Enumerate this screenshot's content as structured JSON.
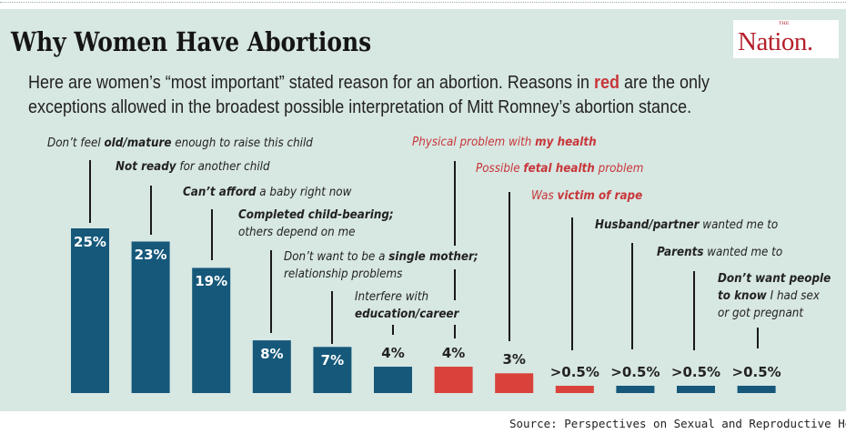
{
  "header": {
    "title": "Why Women Have Abortions",
    "logo_small": "THE",
    "logo": "Nation.",
    "subtitle_line1_a": "Here are women’s “most important” stated reason for an abortion. Reasons in ",
    "subtitle_red_word": "red",
    "subtitle_line1_b": " are the only",
    "subtitle_line2": "exceptions allowed in the broadest possible interpretation of Mitt Romney’s abortion stance."
  },
  "colors": {
    "background": "#d7e7e2",
    "blue": "#15587a",
    "red": "#d9423a",
    "red_text": "#c8363a"
  },
  "chart_data": {
    "type": "bar",
    "title": "Why Women Have Abortions",
    "xlabel": "",
    "ylabel": "",
    "ylim": [
      0,
      25
    ],
    "grid": false,
    "categories": [
      {
        "label": [
          [
            "Don’t feel ",
            0
          ],
          [
            "old/mature",
            1
          ],
          [
            " enough to raise this child",
            0
          ]
        ],
        "value": 25,
        "value_label": "25%",
        "color": "blue"
      },
      {
        "label": [
          [
            "Not ready",
            1
          ],
          [
            " for another child",
            0
          ]
        ],
        "value": 23,
        "value_label": "23%",
        "color": "blue"
      },
      {
        "label": [
          [
            "Can’t afford",
            1
          ],
          [
            " a baby right now",
            0
          ]
        ],
        "value": 19,
        "value_label": "19%",
        "color": "blue"
      },
      {
        "label": [
          [
            "Completed child-bearing;",
            1
          ],
          [
            "\nothers depend on me",
            0
          ]
        ],
        "value": 8,
        "value_label": "8%",
        "color": "blue"
      },
      {
        "label": [
          [
            "Don’t want to be a ",
            0
          ],
          [
            "single mother;",
            1
          ],
          [
            "\nrelationship problems",
            0
          ]
        ],
        "value": 7,
        "value_label": "7%",
        "color": "blue"
      },
      {
        "label": [
          [
            "Interfere with",
            0
          ],
          [
            "\neducation/career",
            1
          ]
        ],
        "value": 4,
        "value_label": "4%",
        "color": "blue"
      },
      {
        "label": [
          [
            "Physical problem with ",
            0
          ],
          [
            "my health",
            1
          ]
        ],
        "value": 4,
        "value_label": "4%",
        "color": "red"
      },
      {
        "label": [
          [
            "Possible ",
            0
          ],
          [
            "fetal health",
            1
          ],
          [
            " problem",
            0
          ]
        ],
        "value": 3,
        "value_label": "3%",
        "color": "red"
      },
      {
        "label": [
          [
            "Was ",
            0
          ],
          [
            "victim of rape",
            1
          ]
        ],
        "value": 0.5,
        "value_label": ">0.5%",
        "color": "red"
      },
      {
        "label": [
          [
            "Husband/partner",
            1
          ],
          [
            " wanted me to",
            0
          ]
        ],
        "value": 0.5,
        "value_label": ">0.5%",
        "color": "blue"
      },
      {
        "label": [
          [
            "Parents",
            1
          ],
          [
            " wanted me to",
            0
          ]
        ],
        "value": 0.5,
        "value_label": ">0.5%",
        "color": "blue"
      },
      {
        "label": [
          [
            "Don’t want people",
            1
          ],
          [
            "\nto know",
            1
          ],
          [
            " I had sex",
            0
          ],
          [
            "\nor got pregnant",
            0
          ]
        ],
        "value": 0.5,
        "value_label": ">0.5%",
        "color": "blue"
      }
    ]
  },
  "footer": {
    "source": "Source: Perspectives on Sexual and Reproductive Health"
  }
}
